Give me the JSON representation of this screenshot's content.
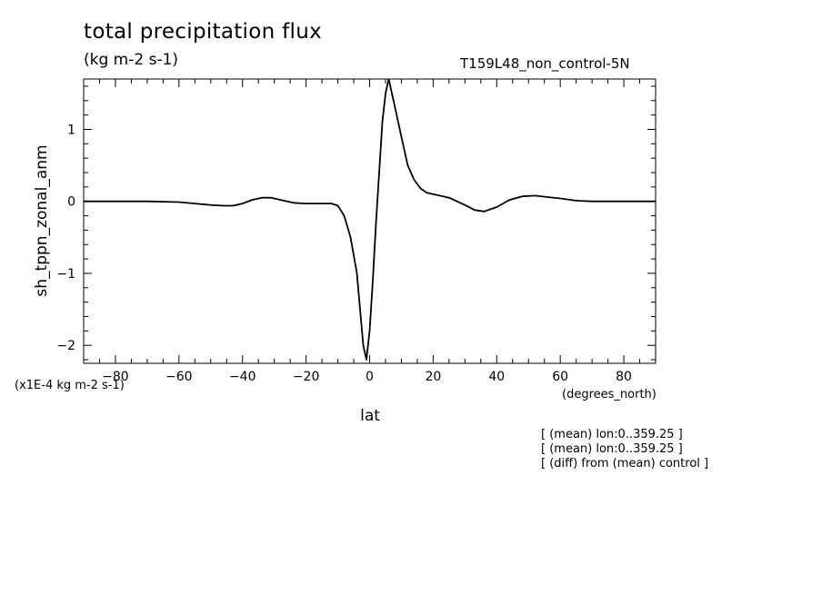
{
  "title": "total precipitation flux",
  "units": "(kg m-2 s-1)",
  "run_label": "T159L48_non_control-5N",
  "annotations": [
    "[ (mean) lon:0..359.25 ]",
    "[ (mean) lon:0..359.25 ]",
    "[ (diff) from (mean) control ]"
  ],
  "colors": {
    "line": "#000000",
    "axes": "#000000",
    "background": "#ffffff"
  },
  "chart_data": {
    "type": "line",
    "title": "total precipitation flux",
    "subtitle": "(kg m-2 s-1)",
    "xlabel": "lat",
    "xunits": "(degrees_north)",
    "ylabel": "sh_tppn_zonal_anm",
    "yscale_label": "(x1E-4 kg m-2 s-1)",
    "xlim": [
      -90,
      90
    ],
    "ylim": [
      -2.25,
      1.7
    ],
    "xticks": [
      -80,
      -60,
      -40,
      -20,
      0,
      20,
      40,
      60,
      80
    ],
    "yticks": [
      -2,
      -1,
      0,
      1
    ],
    "grid": false,
    "series": [
      {
        "x": [
          -90,
          -80,
          -70,
          -60,
          -55,
          -50,
          -46,
          -43,
          -40,
          -37,
          -34,
          -31,
          -28,
          -24,
          -20,
          -16,
          -12,
          -10,
          -8,
          -6,
          -4,
          -3,
          -2,
          -1,
          0,
          1,
          2,
          3,
          4,
          5,
          6,
          7,
          8,
          10,
          12,
          14,
          16,
          18,
          20,
          25,
          30,
          33,
          36,
          40,
          44,
          48,
          52,
          56,
          60,
          65,
          70,
          80,
          90
        ],
        "y": [
          0,
          0,
          0,
          -0.01,
          -0.03,
          -0.05,
          -0.06,
          -0.06,
          -0.03,
          0.02,
          0.05,
          0.05,
          0.02,
          -0.02,
          -0.03,
          -0.03,
          -0.03,
          -0.06,
          -0.2,
          -0.5,
          -1.0,
          -1.5,
          -2.0,
          -2.2,
          -1.8,
          -1.1,
          -0.3,
          0.4,
          1.1,
          1.5,
          1.7,
          1.5,
          1.3,
          0.9,
          0.5,
          0.3,
          0.18,
          0.12,
          0.1,
          0.05,
          -0.05,
          -0.12,
          -0.14,
          -0.08,
          0.02,
          0.07,
          0.08,
          0.06,
          0.04,
          0.01,
          0,
          0,
          0
        ]
      }
    ]
  }
}
